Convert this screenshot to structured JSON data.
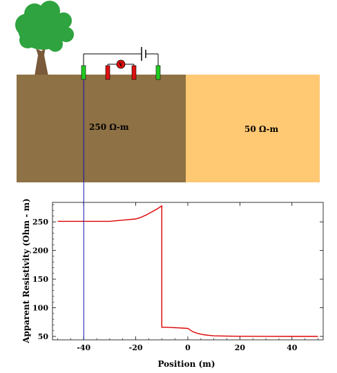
{
  "scene": {
    "colors": {
      "left_layer": "#8E7144",
      "right_layer": "#FFC873",
      "electrode_current": "#22CC22",
      "electrode_potential": "#DD1111",
      "voltmeter": "#DD1111",
      "curve": "#DD0000",
      "marker_line": "#1111AA",
      "tree_foliage": "#2EA33F",
      "tree_trunk": "#7A5A3A"
    },
    "left_layer_label": "250 Ω-m",
    "right_layer_label": "50 Ω-m",
    "voltmeter_symbol": "V"
  },
  "chart_data": {
    "type": "line",
    "title": "",
    "xlabel": "Position (m)",
    "ylabel": "Apparent Resistivity (Ohm - m)",
    "xlim": [
      -52,
      52
    ],
    "ylim": [
      44,
      284
    ],
    "xticks": [
      -40,
      -20,
      0,
      20,
      40
    ],
    "yticks": [
      50,
      100,
      150,
      200,
      250
    ],
    "xtick_labels": [
      "-40",
      "-20",
      "0",
      "20",
      "40"
    ],
    "ytick_labels": [
      "50",
      "100",
      "150",
      "200",
      "250"
    ],
    "marker_x": -40,
    "series": [
      {
        "name": "apparent resistivity",
        "x": [
          -50,
          -40,
          -30,
          -25,
          -20,
          -18,
          -16,
          -14,
          -12,
          -10,
          -10,
          -8,
          -6,
          -4,
          -2,
          0,
          2,
          4,
          6,
          8,
          10,
          15,
          20,
          30,
          40,
          50
        ],
        "y": [
          251,
          251,
          251,
          253,
          255,
          258,
          262,
          267,
          272,
          278,
          66,
          66,
          65.5,
          65,
          64.5,
          64,
          58,
          55,
          53,
          52,
          51,
          50.5,
          50.3,
          50.1,
          50,
          50
        ]
      }
    ]
  }
}
